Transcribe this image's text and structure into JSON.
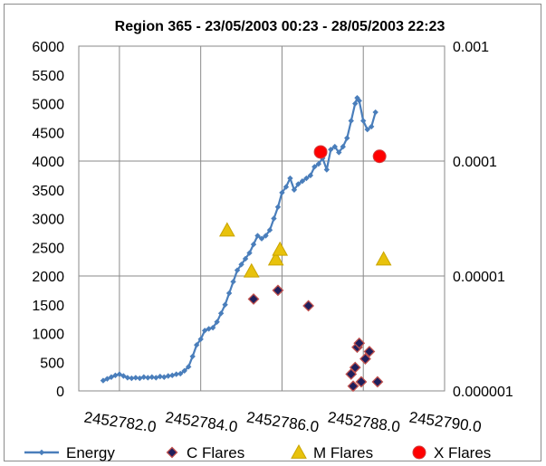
{
  "chart_data": {
    "type": "scatter",
    "title": "Region 365 - 23/05/2003 00:23 - 28/05/2003 22:23",
    "xlabel": "",
    "ylabel": "",
    "xlim": [
      2452781.0,
      2452790.0
    ],
    "ylim": [
      0,
      6000
    ],
    "y2lim": [
      1e-06,
      0.001
    ],
    "y2_scale": "log",
    "x_ticks": [
      "2452782.0",
      "2452784.0",
      "2452786.0",
      "2452788.0",
      "2452790.0"
    ],
    "y_ticks": [
      "0",
      "500",
      "1000",
      "1500",
      "2000",
      "2500",
      "3000",
      "3500",
      "4000",
      "4500",
      "5000",
      "5500",
      "6000"
    ],
    "y2_ticks": [
      "0.000001",
      "0.00001",
      "0.0001",
      "0.001"
    ],
    "grid": "x-major",
    "legend_position": "bottom",
    "series": [
      {
        "name": "Energy",
        "kind": "line-markers",
        "axis": "left",
        "color": "#4a7ebb",
        "points": [
          [
            2452781.6,
            180
          ],
          [
            2452781.7,
            210
          ],
          [
            2452781.8,
            240
          ],
          [
            2452781.9,
            270
          ],
          [
            2452782.0,
            290
          ],
          [
            2452782.1,
            260
          ],
          [
            2452782.2,
            230
          ],
          [
            2452782.3,
            220
          ],
          [
            2452782.4,
            230
          ],
          [
            2452782.5,
            220
          ],
          [
            2452782.6,
            240
          ],
          [
            2452782.7,
            230
          ],
          [
            2452782.8,
            240
          ],
          [
            2452782.9,
            230
          ],
          [
            2452783.0,
            250
          ],
          [
            2452783.1,
            240
          ],
          [
            2452783.2,
            260
          ],
          [
            2452783.3,
            270
          ],
          [
            2452783.4,
            290
          ],
          [
            2452783.5,
            300
          ],
          [
            2452783.6,
            350
          ],
          [
            2452783.7,
            420
          ],
          [
            2452783.8,
            600
          ],
          [
            2452783.9,
            800
          ],
          [
            2452784.0,
            900
          ],
          [
            2452784.1,
            1050
          ],
          [
            2452784.2,
            1080
          ],
          [
            2452784.3,
            1100
          ],
          [
            2452784.4,
            1200
          ],
          [
            2452784.5,
            1350
          ],
          [
            2452784.6,
            1500
          ],
          [
            2452784.7,
            1700
          ],
          [
            2452784.8,
            1900
          ],
          [
            2452784.9,
            2100
          ],
          [
            2452785.0,
            2200
          ],
          [
            2452785.1,
            2300
          ],
          [
            2452785.2,
            2400
          ],
          [
            2452785.3,
            2550
          ],
          [
            2452785.4,
            2700
          ],
          [
            2452785.5,
            2650
          ],
          [
            2452785.6,
            2700
          ],
          [
            2452785.7,
            2800
          ],
          [
            2452785.8,
            3000
          ],
          [
            2452785.9,
            3200
          ],
          [
            2452786.0,
            3450
          ],
          [
            2452786.1,
            3550
          ],
          [
            2452786.2,
            3700
          ],
          [
            2452786.3,
            3500
          ],
          [
            2452786.4,
            3600
          ],
          [
            2452786.5,
            3650
          ],
          [
            2452786.6,
            3700
          ],
          [
            2452786.7,
            3750
          ],
          [
            2452786.8,
            3900
          ],
          [
            2452786.9,
            3950
          ],
          [
            2452787.0,
            4050
          ],
          [
            2452787.1,
            3850
          ],
          [
            2452787.2,
            4200
          ],
          [
            2452787.3,
            4250
          ],
          [
            2452787.4,
            4150
          ],
          [
            2452787.5,
            4250
          ],
          [
            2452787.6,
            4400
          ],
          [
            2452787.7,
            4700
          ],
          [
            2452787.8,
            5000
          ],
          [
            2452787.85,
            5100
          ],
          [
            2452787.9,
            5050
          ],
          [
            2452788.0,
            4700
          ],
          [
            2452788.1,
            4550
          ],
          [
            2452788.2,
            4600
          ],
          [
            2452788.3,
            4850
          ]
        ]
      },
      {
        "name": "C Flares",
        "kind": "markers",
        "axis": "right",
        "marker": "diamond",
        "color": "#1f1f5c",
        "points": [
          [
            2452785.3,
            6.3e-06
          ],
          [
            2452785.9,
            7.5e-06
          ],
          [
            2452786.65,
            5.5e-06
          ],
          [
            2452787.7,
            1.4e-06
          ],
          [
            2452787.75,
            1.1e-06
          ],
          [
            2452787.8,
            1.6e-06
          ],
          [
            2452787.85,
            2.4e-06
          ],
          [
            2452787.9,
            2.6e-06
          ],
          [
            2452787.95,
            1.2e-06
          ],
          [
            2452788.05,
            1.9e-06
          ],
          [
            2452788.15,
            2.2e-06
          ],
          [
            2452788.35,
            1.2e-06
          ]
        ]
      },
      {
        "name": "M Flares",
        "kind": "markers",
        "axis": "right",
        "marker": "triangle",
        "color": "#e8c20c",
        "points": [
          [
            2452784.65,
            2.5e-05
          ],
          [
            2452785.25,
            1.1e-05
          ],
          [
            2452785.85,
            1.4e-05
          ],
          [
            2452785.95,
            1.7e-05
          ],
          [
            2452788.5,
            1.4e-05
          ]
        ]
      },
      {
        "name": "X Flares",
        "kind": "markers",
        "axis": "right",
        "marker": "circle",
        "color": "#ff0000",
        "points": [
          [
            2452786.95,
            0.00012
          ],
          [
            2452788.4,
            0.00011
          ]
        ]
      }
    ]
  }
}
